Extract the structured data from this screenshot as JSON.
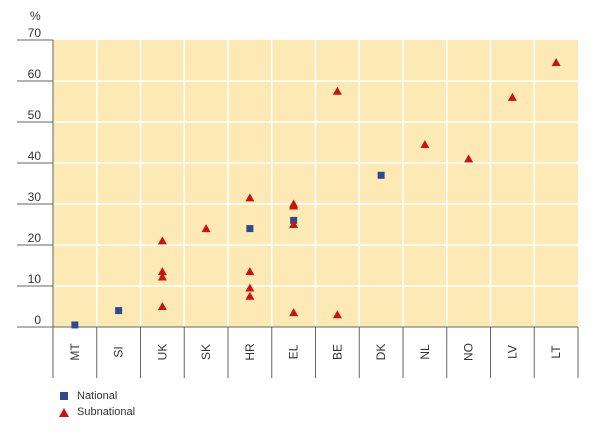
{
  "chart_data": {
    "type": "scatter",
    "ylabel": "%",
    "ylim": [
      0,
      70
    ],
    "yticks": [
      0,
      10,
      20,
      30,
      40,
      50,
      60,
      70
    ],
    "grid": true,
    "categories": [
      "MT",
      "SI",
      "UK",
      "SK",
      "HR",
      "EL",
      "BE",
      "DK",
      "NL",
      "NO",
      "LV",
      "LT"
    ],
    "series": [
      {
        "name": "National",
        "marker": "square",
        "color": "#2e4a8f",
        "points": [
          {
            "x": "MT",
            "y": 0.5
          },
          {
            "x": "SI",
            "y": 4
          },
          {
            "x": "HR",
            "y": 24
          },
          {
            "x": "EL",
            "y": 26
          },
          {
            "x": "DK",
            "y": 37
          }
        ]
      },
      {
        "name": "Subnational",
        "marker": "triangle",
        "color": "#cc1111",
        "points": [
          {
            "x": "UK",
            "y": 21
          },
          {
            "x": "UK",
            "y": 13.5
          },
          {
            "x": "UK",
            "y": 12.2
          },
          {
            "x": "UK",
            "y": 5
          },
          {
            "x": "SK",
            "y": 24
          },
          {
            "x": "HR",
            "y": 31.5
          },
          {
            "x": "HR",
            "y": 13.5
          },
          {
            "x": "HR",
            "y": 9.5
          },
          {
            "x": "HR",
            "y": 7.5
          },
          {
            "x": "EL",
            "y": 30
          },
          {
            "x": "EL",
            "y": 29.5
          },
          {
            "x": "EL",
            "y": 25
          },
          {
            "x": "EL",
            "y": 3.5
          },
          {
            "x": "BE",
            "y": 57.5
          },
          {
            "x": "BE",
            "y": 3
          },
          {
            "x": "NL",
            "y": 44.5
          },
          {
            "x": "NO",
            "y": 41
          },
          {
            "x": "LV",
            "y": 56
          },
          {
            "x": "LT",
            "y": 64.5
          }
        ]
      }
    ],
    "legend": "bottom-left",
    "colors": {
      "plot_bg": "#fde9b4",
      "grid": "#ffffff",
      "axis": "#666666"
    }
  }
}
